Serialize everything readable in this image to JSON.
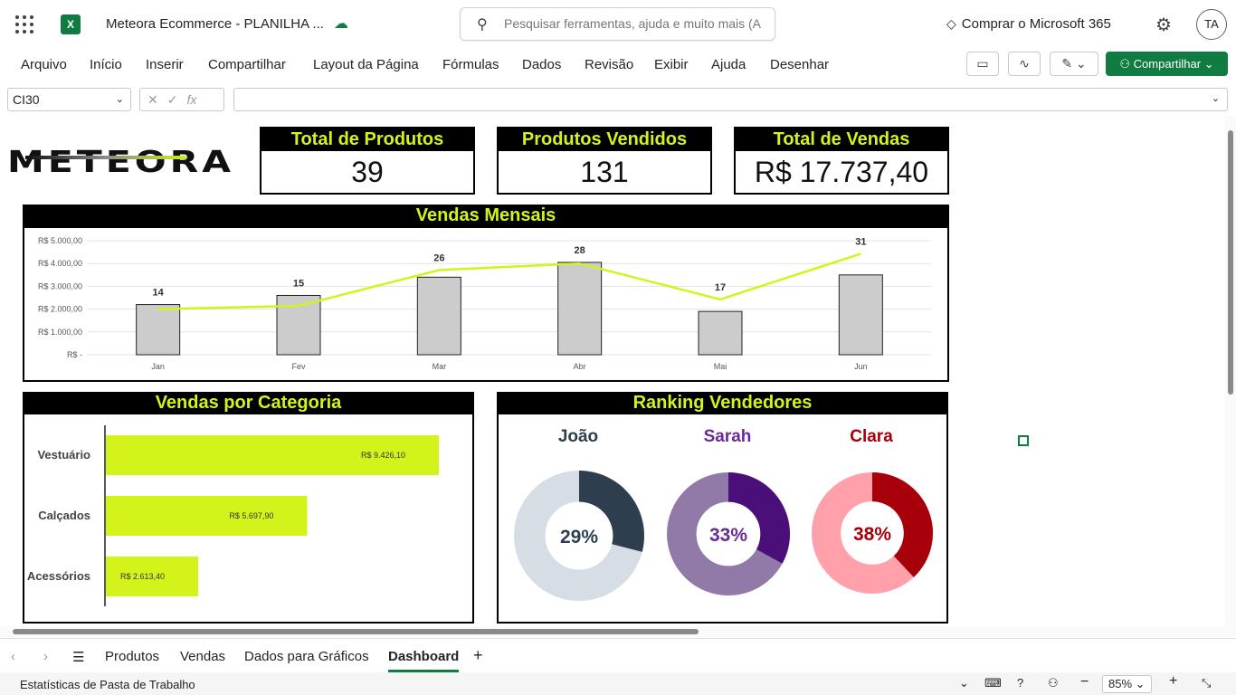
{
  "app": {
    "title": "Meteora Ecommerce - PLANILHA ...",
    "search_placeholder": "Pesquisar ferramentas, ajuda e muito mais (A",
    "buy_label": "Comprar o Microsoft 365",
    "avatar": "TA",
    "excel_icon": "X"
  },
  "menu": [
    "Arquivo",
    "Início",
    "Inserir",
    "Compartilhar",
    "Layout da Página",
    "Fórmulas",
    "Dados",
    "Revisão",
    "Exibir",
    "Ajuda",
    "Desenhar"
  ],
  "share_label": "Compartilhar",
  "formula_bar": {
    "cell": "CI30",
    "value": ""
  },
  "sheets": [
    "Produtos",
    "Vendas",
    "Dados para Gráficos",
    "Dashboard"
  ],
  "active_sheet": "Dashboard",
  "status": {
    "left": "Estatísticas de Pasta de Trabalho",
    "zoom": "85%"
  },
  "dashboard": {
    "logo": "METEORA",
    "kpis": [
      {
        "label": "Total de Produtos",
        "value": "39"
      },
      {
        "label": "Produtos Vendidos",
        "value": "131"
      },
      {
        "label": "Total de Vendas",
        "value": "R$ 17.737,40"
      }
    ]
  },
  "chart_data": [
    {
      "type": "bar",
      "title": "Vendas Mensais",
      "categories": [
        "Jan",
        "Fev",
        "Mar",
        "Abr",
        "Mai",
        "Jun"
      ],
      "y_ticks": [
        "R$ -",
        "R$ 1.000,00",
        "R$ 2.000,00",
        "R$ 3.000,00",
        "R$ 4.000,00",
        "R$ 5.000,00"
      ],
      "ylim": [
        0,
        5000
      ],
      "series": [
        {
          "type": "bar",
          "values": [
            2200,
            2600,
            3400,
            4050,
            1900,
            3500
          ],
          "color": "#cccccc"
        },
        {
          "type": "line",
          "values": [
            14,
            15,
            26,
            28,
            17,
            31
          ],
          "color": "#d4f31a",
          "labels": [
            "14",
            "15",
            "26",
            "28",
            "17",
            "31"
          ]
        }
      ],
      "line_ylim": [
        0,
        35
      ]
    },
    {
      "type": "bar",
      "orientation": "horizontal",
      "title": "Vendas por Categoria",
      "categories": [
        "Vestuário",
        "Calçados",
        "Acessórios"
      ],
      "values": [
        9426.1,
        5697.9,
        2613.4
      ],
      "labels": [
        "R$ 9.426,10",
        "R$ 5.697,90",
        "R$ 2.613,40"
      ],
      "color": "#d4f31a"
    },
    {
      "type": "pie",
      "title": "Ranking Vendedores",
      "donuts": [
        {
          "name": "João",
          "value": 29,
          "label": "29%",
          "color": "#2e3e4e",
          "rest": "#d6dde4",
          "text_color": "#2e3e4e"
        },
        {
          "name": "Sarah",
          "value": 33,
          "label": "33%",
          "color": "#4b0f7a",
          "rest": "#927aa8",
          "text_color": "#6a2b96"
        },
        {
          "name": "Clara",
          "value": 38,
          "label": "38%",
          "color": "#a8000a",
          "rest": "#ffa0aa",
          "text_color": "#a8000a"
        }
      ]
    }
  ]
}
